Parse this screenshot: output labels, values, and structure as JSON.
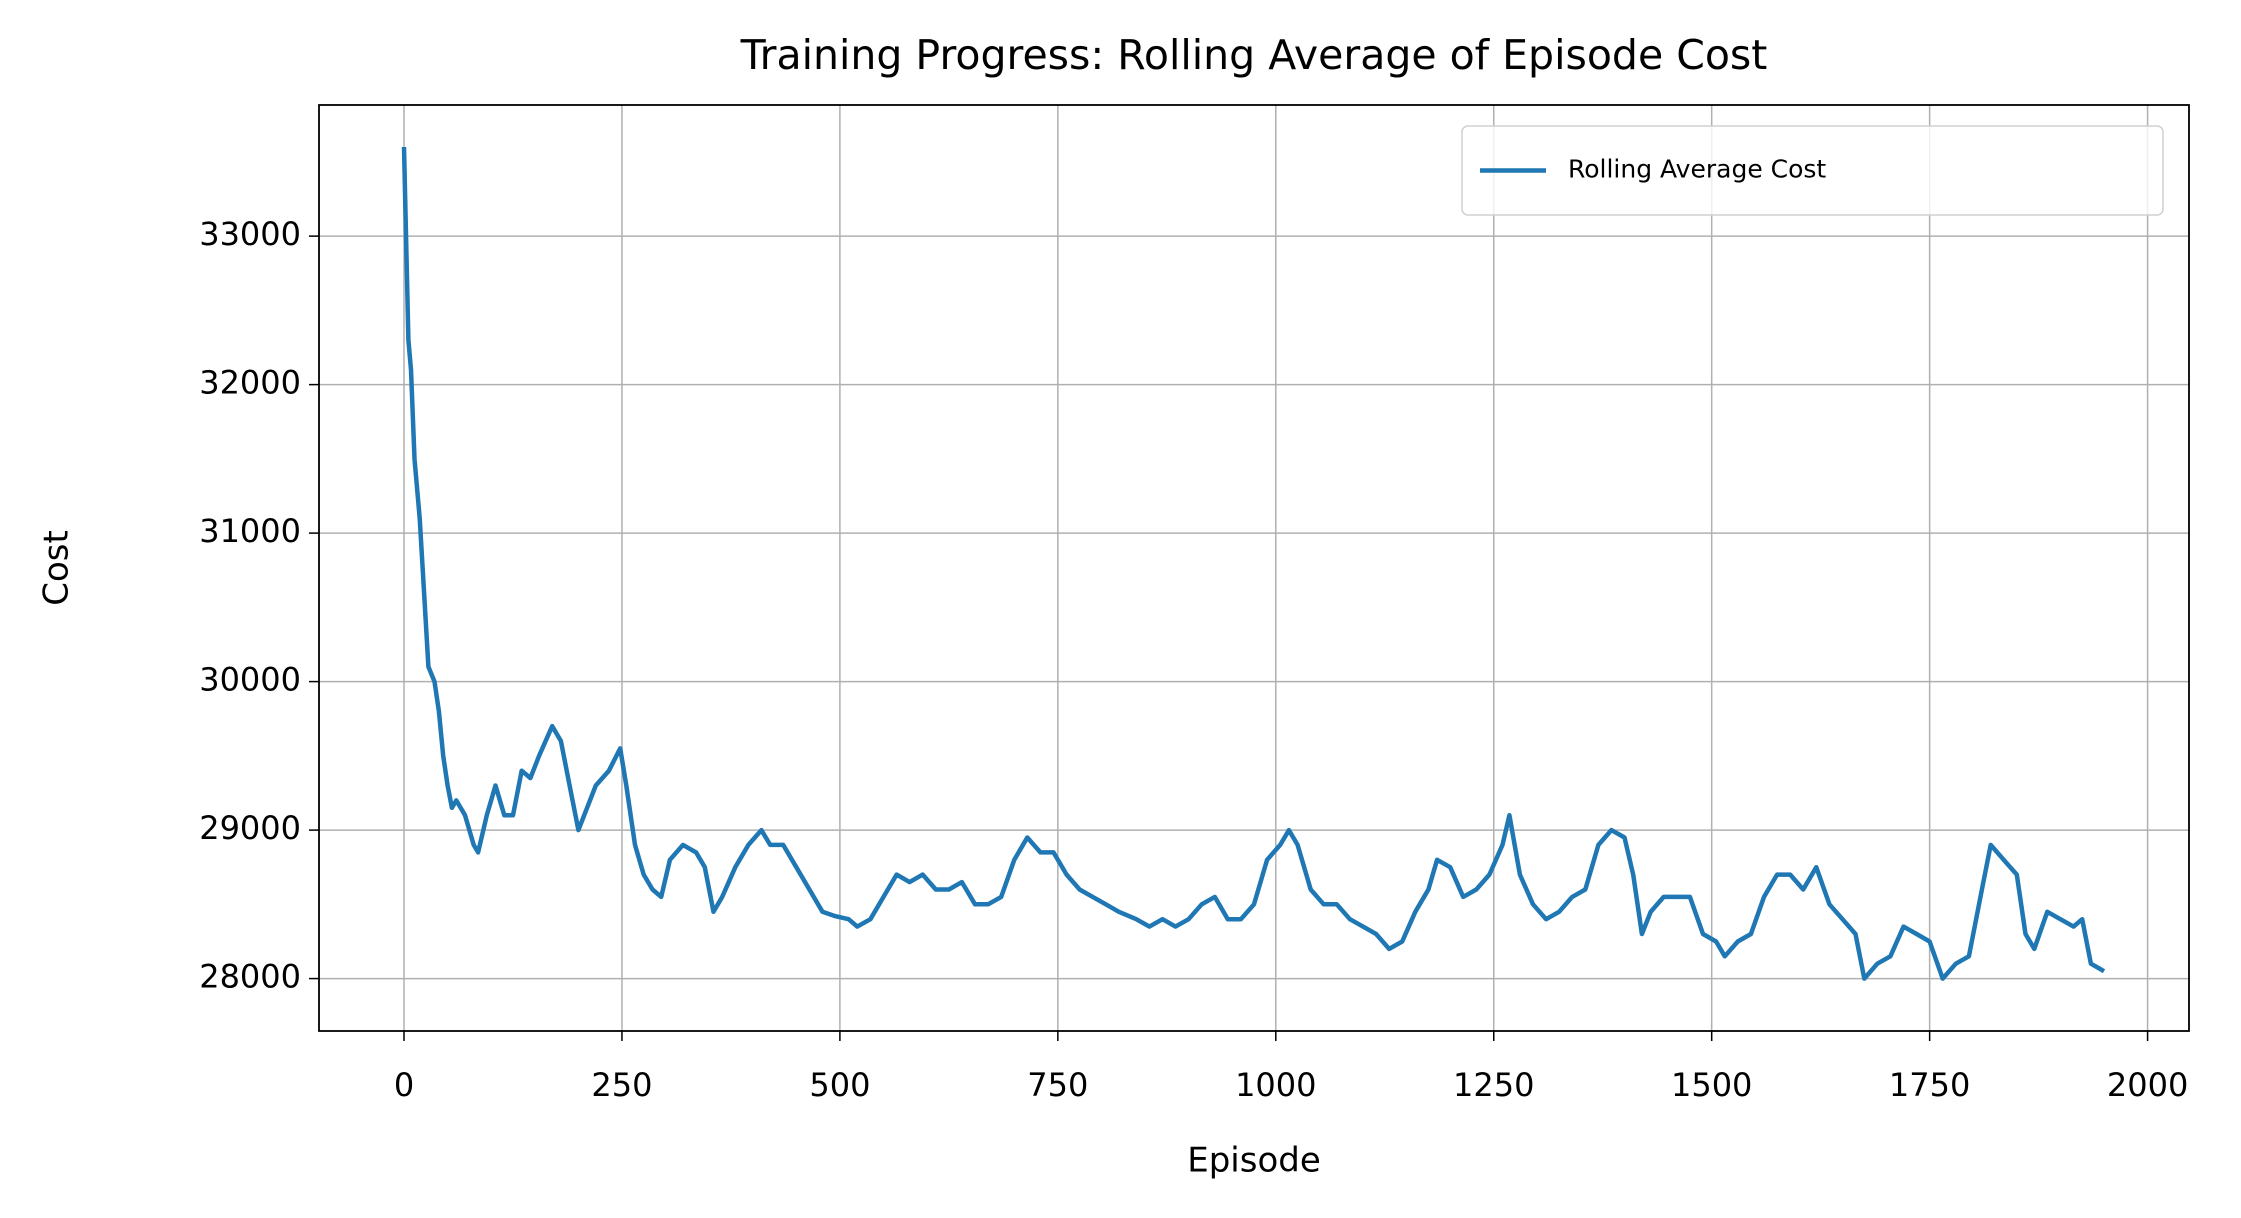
{
  "chart_data": {
    "type": "line",
    "title": "Training Progress: Rolling Average of Episode Cost",
    "xlabel": "Episode",
    "ylabel": "Cost",
    "x": [
      0,
      5,
      8,
      12,
      18,
      22,
      28,
      35,
      40,
      45,
      50,
      55,
      60,
      70,
      80,
      85,
      95,
      105,
      115,
      125,
      135,
      145,
      155,
      170,
      180,
      190,
      200,
      210,
      220,
      235,
      248,
      255,
      265,
      275,
      285,
      295,
      305,
      320,
      335,
      345,
      355,
      365,
      380,
      395,
      410,
      420,
      435,
      450,
      465,
      480,
      495,
      510,
      520,
      535,
      550,
      565,
      580,
      595,
      610,
      625,
      640,
      655,
      670,
      685,
      700,
      715,
      730,
      745,
      760,
      775,
      790,
      805,
      820,
      840,
      855,
      870,
      885,
      900,
      915,
      930,
      945,
      960,
      975,
      990,
      1005,
      1015,
      1025,
      1040,
      1055,
      1070,
      1085,
      1100,
      1115,
      1130,
      1145,
      1160,
      1175,
      1185,
      1200,
      1215,
      1230,
      1245,
      1260,
      1268,
      1280,
      1295,
      1310,
      1325,
      1340,
      1355,
      1370,
      1385,
      1400,
      1410,
      1420,
      1430,
      1445,
      1460,
      1475,
      1490,
      1505,
      1515,
      1530,
      1545,
      1560,
      1575,
      1590,
      1605,
      1620,
      1635,
      1650,
      1665,
      1675,
      1690,
      1705,
      1720,
      1735,
      1750,
      1765,
      1780,
      1795,
      1810,
      1820,
      1835,
      1850,
      1860,
      1870,
      1885,
      1900,
      1915,
      1925,
      1935,
      1950
    ],
    "series": [
      {
        "name": "Rolling Average Cost",
        "color": "#1f77b4",
        "values": [
          33600,
          32300,
          32100,
          31500,
          31100,
          30700,
          30100,
          30000,
          29800,
          29500,
          29300,
          29150,
          29200,
          29100,
          28900,
          28850,
          29100,
          29300,
          29100,
          29100,
          29400,
          29350,
          29500,
          29700,
          29600,
          29300,
          29000,
          29150,
          29300,
          29400,
          29550,
          29300,
          28900,
          28700,
          28600,
          28550,
          28800,
          28900,
          28850,
          28750,
          28450,
          28550,
          28750,
          28900,
          29000,
          28900,
          28900,
          28750,
          28600,
          28450,
          28420,
          28400,
          28350,
          28400,
          28550,
          28700,
          28650,
          28700,
          28600,
          28600,
          28650,
          28500,
          28500,
          28550,
          28800,
          28950,
          28850,
          28850,
          28700,
          28600,
          28550,
          28500,
          28450,
          28400,
          28350,
          28400,
          28350,
          28400,
          28500,
          28550,
          28400,
          28400,
          28500,
          28800,
          28900,
          29000,
          28900,
          28600,
          28500,
          28500,
          28400,
          28350,
          28300,
          28200,
          28250,
          28450,
          28600,
          28800,
          28750,
          28550,
          28600,
          28700,
          28900,
          29100,
          28700,
          28500,
          28400,
          28450,
          28550,
          28600,
          28900,
          29000,
          28950,
          28700,
          28300,
          28450,
          28550,
          28550,
          28550,
          28300,
          28250,
          28150,
          28250,
          28300,
          28550,
          28700,
          28700,
          28600,
          28750,
          28500,
          28400,
          28300,
          28000,
          28100,
          28150,
          28350,
          28300,
          28250,
          28000,
          28100,
          28150,
          28600,
          28900,
          28800,
          28700,
          28300,
          28200,
          28450,
          28400,
          28350,
          28400,
          28100,
          28050
        ]
      }
    ],
    "xlim": [
      -97.5,
      2047.5
    ],
    "ylim": [
      27647,
      33883
    ],
    "xticks": [
      0,
      250,
      500,
      750,
      1000,
      1250,
      1500,
      1750,
      2000
    ],
    "yticks": [
      28000,
      29000,
      30000,
      31000,
      32000,
      33000
    ],
    "grid": true,
    "legend": "upper right"
  }
}
